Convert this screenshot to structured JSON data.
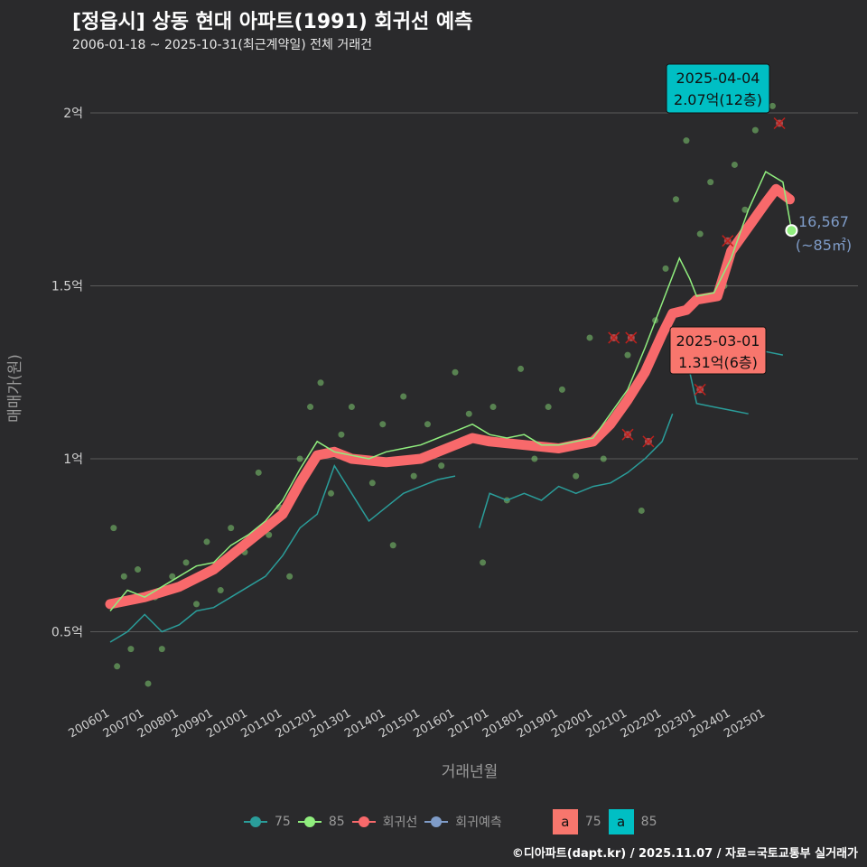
{
  "title": "[정읍시] 상동 현대 아파트(1991) 회귀선 예측",
  "subtitle": "2006-01-18 ~ 2025-10-31(최근계약일) 전체 거래건",
  "footer": "©디아파트(dapt.kr) / 2025.11.07 / 자료=국토교통부 실거래가",
  "legend": {
    "items": [
      {
        "label": "75",
        "color": "#2a9d9a"
      },
      {
        "label": "85",
        "color": "#90ee7e"
      },
      {
        "label": "회귀선",
        "color": "#f8696b"
      },
      {
        "label": "회귀예측",
        "color": "#7f9cc8"
      }
    ],
    "boxes": [
      {
        "glyph": "a",
        "label": "75",
        "color": "#f8766d"
      },
      {
        "glyph": "a",
        "label": "85",
        "color": "#00bfc4"
      }
    ]
  },
  "annotations": {
    "max": {
      "date": "2025-04-04",
      "value": "2.07억(12층)"
    },
    "min": {
      "date": "2025-03-01",
      "value": "1.31억(6층)"
    },
    "predict": {
      "value": "16,567",
      "area": "(~85㎡)"
    }
  },
  "chart_data": {
    "type": "line",
    "xlabel": "거래년월",
    "ylabel": "매매가(원)",
    "ylim": [
      0.27,
      2.2
    ],
    "xlim": [
      2005.5,
      2026.3
    ],
    "yticks": [
      {
        "v": 0.5,
        "label": "0.5억"
      },
      {
        "v": 1,
        "label": "1억"
      },
      {
        "v": 1.5,
        "label": "1.5억"
      },
      {
        "v": 2,
        "label": "2억"
      }
    ],
    "xticks": [
      "200601",
      "200701",
      "200801",
      "200901",
      "201001",
      "201101",
      "201201",
      "201301",
      "201401",
      "201501",
      "201601",
      "201701",
      "201801",
      "201901",
      "202001",
      "202101",
      "202201",
      "202301",
      "202401",
      "202501"
    ],
    "series": [
      {
        "name": "회귀선",
        "color": "#f8696b",
        "points": [
          [
            2006,
            0.58
          ],
          [
            2007,
            0.6
          ],
          [
            2008,
            0.63
          ],
          [
            2009,
            0.68
          ],
          [
            2010,
            0.76
          ],
          [
            2011,
            0.84
          ],
          [
            2011.5,
            0.93
          ],
          [
            2012,
            1.01
          ],
          [
            2012.5,
            1.02
          ],
          [
            2013,
            1.0
          ],
          [
            2014,
            0.99
          ],
          [
            2015,
            1.0
          ],
          [
            2016,
            1.04
          ],
          [
            2016.5,
            1.06
          ],
          [
            2017,
            1.05
          ],
          [
            2018,
            1.04
          ],
          [
            2019,
            1.03
          ],
          [
            2020,
            1.05
          ],
          [
            2020.5,
            1.1
          ],
          [
            2021,
            1.17
          ],
          [
            2021.5,
            1.25
          ],
          [
            2022,
            1.36
          ],
          [
            2022.3,
            1.42
          ],
          [
            2022.7,
            1.43
          ],
          [
            2023,
            1.46
          ],
          [
            2023.6,
            1.47
          ],
          [
            2024,
            1.6
          ],
          [
            2024.5,
            1.67
          ],
          [
            2025,
            1.74
          ],
          [
            2025.3,
            1.78
          ],
          [
            2025.7,
            1.75
          ]
        ]
      },
      {
        "name": "85",
        "color": "#90ee7e",
        "points": [
          [
            2006,
            0.56
          ],
          [
            2006.5,
            0.62
          ],
          [
            2007,
            0.6
          ],
          [
            2007.5,
            0.63
          ],
          [
            2008,
            0.66
          ],
          [
            2008.5,
            0.69
          ],
          [
            2009,
            0.7
          ],
          [
            2009.5,
            0.75
          ],
          [
            2010,
            0.78
          ],
          [
            2010.5,
            0.82
          ],
          [
            2011,
            0.88
          ],
          [
            2011.5,
            0.97
          ],
          [
            2012,
            1.05
          ],
          [
            2012.5,
            1.02
          ],
          [
            2013,
            1.01
          ],
          [
            2013.5,
            1.0
          ],
          [
            2014,
            1.02
          ],
          [
            2014.5,
            1.03
          ],
          [
            2015,
            1.04
          ],
          [
            2015.5,
            1.06
          ],
          [
            2016,
            1.08
          ],
          [
            2016.5,
            1.1
          ],
          [
            2017,
            1.07
          ],
          [
            2017.5,
            1.06
          ],
          [
            2018,
            1.07
          ],
          [
            2018.5,
            1.04
          ],
          [
            2019,
            1.04
          ],
          [
            2019.5,
            1.05
          ],
          [
            2020,
            1.06
          ],
          [
            2020.5,
            1.13
          ],
          [
            2021,
            1.2
          ],
          [
            2021.5,
            1.32
          ],
          [
            2022,
            1.45
          ],
          [
            2022.5,
            1.58
          ],
          [
            2022.8,
            1.52
          ],
          [
            2023,
            1.47
          ],
          [
            2023.5,
            1.48
          ],
          [
            2024,
            1.58
          ],
          [
            2024.5,
            1.72
          ],
          [
            2025,
            1.83
          ],
          [
            2025.5,
            1.8
          ],
          [
            2025.75,
            1.66
          ]
        ]
      },
      {
        "name": "75",
        "color": "#2a9d9a",
        "points": [
          [
            2006,
            0.47
          ],
          [
            2006.5,
            0.5
          ],
          [
            2007,
            0.55
          ],
          [
            2007.5,
            0.5
          ],
          [
            2008,
            0.52
          ],
          [
            2008.5,
            0.56
          ],
          [
            2009,
            0.57
          ],
          [
            2009.5,
            0.6
          ],
          [
            2010,
            0.63
          ],
          [
            2010.5,
            0.66
          ],
          [
            2011,
            0.72
          ],
          [
            2011.5,
            0.8
          ],
          [
            2012,
            0.84
          ],
          [
            2012.5,
            0.98
          ],
          [
            2013,
            0.9
          ],
          [
            2013.5,
            0.82
          ],
          [
            2014,
            0.86
          ],
          [
            2014.5,
            0.9
          ],
          [
            2015,
            0.92
          ],
          [
            2015.5,
            0.94
          ],
          [
            2016,
            0.95
          ],
          null,
          [
            2016.7,
            0.8
          ],
          [
            2017,
            0.9
          ],
          [
            2017.5,
            0.88
          ],
          [
            2018,
            0.9
          ],
          [
            2018.5,
            0.88
          ],
          [
            2019,
            0.92
          ],
          [
            2019.5,
            0.9
          ],
          [
            2020,
            0.92
          ],
          [
            2020.5,
            0.93
          ],
          [
            2021,
            0.96
          ],
          [
            2021.5,
            1.0
          ],
          [
            2022,
            1.05
          ],
          [
            2022.3,
            1.13
          ],
          null,
          [
            2022.8,
            1.25
          ],
          [
            2023,
            1.16
          ],
          [
            2023.5,
            1.15
          ],
          [
            2024,
            1.14
          ],
          [
            2024.5,
            1.13
          ],
          null,
          [
            2025,
            1.31
          ],
          [
            2025.5,
            1.3
          ]
        ]
      }
    ],
    "scatter": [
      [
        2006.1,
        0.8
      ],
      [
        2006.2,
        0.4
      ],
      [
        2006.4,
        0.66
      ],
      [
        2006.6,
        0.45
      ],
      [
        2006.8,
        0.68
      ],
      [
        2007.1,
        0.35
      ],
      [
        2007.3,
        0.6
      ],
      [
        2007.5,
        0.45
      ],
      [
        2007.8,
        0.66
      ],
      [
        2008.2,
        0.7
      ],
      [
        2008.5,
        0.58
      ],
      [
        2008.8,
        0.76
      ],
      [
        2009.2,
        0.62
      ],
      [
        2009.5,
        0.8
      ],
      [
        2009.9,
        0.73
      ],
      [
        2010.3,
        0.96
      ],
      [
        2010.6,
        0.78
      ],
      [
        2010.9,
        0.86
      ],
      [
        2011.2,
        0.66
      ],
      [
        2011.5,
        1.0
      ],
      [
        2011.8,
        1.15
      ],
      [
        2012.1,
        1.22
      ],
      [
        2012.4,
        0.9
      ],
      [
        2012.7,
        1.07
      ],
      [
        2013.0,
        1.15
      ],
      [
        2013.3,
        1.0
      ],
      [
        2013.6,
        0.93
      ],
      [
        2013.9,
        1.1
      ],
      [
        2014.2,
        0.75
      ],
      [
        2014.5,
        1.18
      ],
      [
        2014.8,
        0.95
      ],
      [
        2015.2,
        1.1
      ],
      [
        2015.6,
        0.98
      ],
      [
        2016.0,
        1.25
      ],
      [
        2016.4,
        1.13
      ],
      [
        2016.8,
        0.7
      ],
      [
        2017.1,
        1.15
      ],
      [
        2017.5,
        0.88
      ],
      [
        2017.9,
        1.26
      ],
      [
        2018.3,
        1.0
      ],
      [
        2018.7,
        1.15
      ],
      [
        2019.1,
        1.2
      ],
      [
        2019.5,
        0.95
      ],
      [
        2019.9,
        1.35
      ],
      [
        2020.3,
        1.0
      ],
      [
        2020.7,
        1.12
      ],
      [
        2021.0,
        1.3
      ],
      [
        2021.4,
        0.85
      ],
      [
        2021.8,
        1.4
      ],
      [
        2022.1,
        1.55
      ],
      [
        2022.4,
        1.75
      ],
      [
        2022.7,
        1.92
      ],
      [
        2023.1,
        1.65
      ],
      [
        2023.4,
        1.8
      ],
      [
        2023.8,
        1.5
      ],
      [
        2024.1,
        1.85
      ],
      [
        2024.4,
        1.72
      ],
      [
        2024.7,
        1.95
      ],
      [
        2025.0,
        2.07
      ],
      [
        2025.2,
        2.02
      ],
      [
        2024.9,
        1.3
      ]
    ],
    "regression_marks": [
      [
        2020.6,
        1.35
      ],
      [
        2021.1,
        1.35
      ],
      [
        2021.0,
        1.07
      ],
      [
        2021.6,
        1.05
      ],
      [
        2023.1,
        1.2
      ],
      [
        2023.9,
        1.63
      ],
      [
        2025.4,
        1.97
      ]
    ],
    "predict_point": [
      2025.75,
      1.66
    ]
  }
}
